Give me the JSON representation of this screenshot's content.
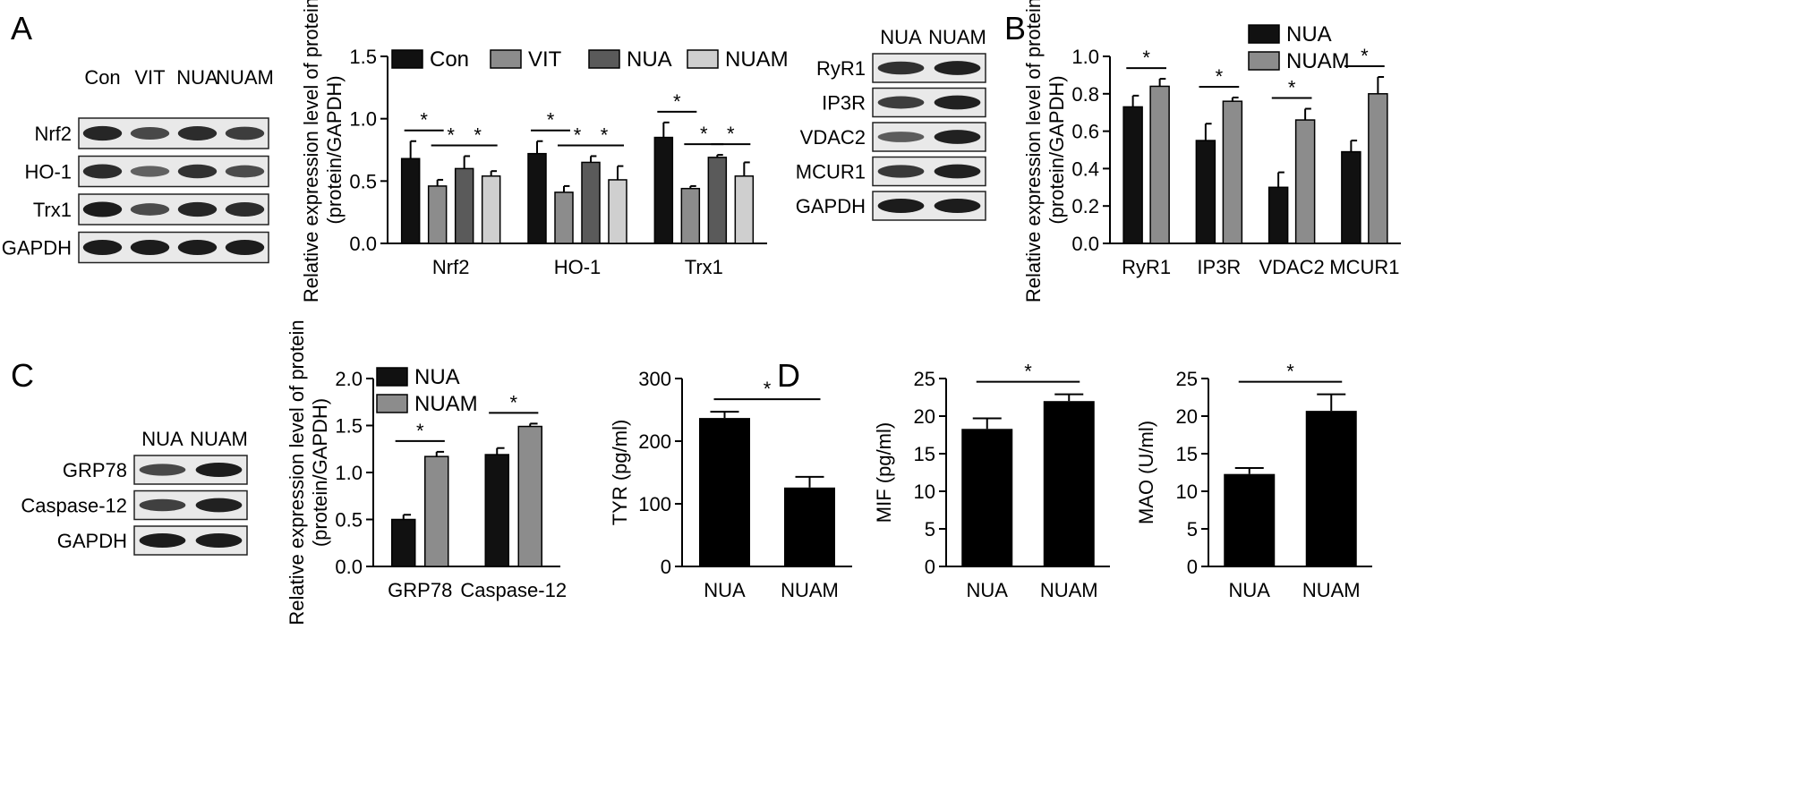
{
  "panels": {
    "A": {
      "letter": "A",
      "blot": {
        "lanes": [
          "Con",
          "VIT",
          "NUA",
          "NUAM"
        ],
        "rows": [
          "Nrf2",
          "HO-1",
          "Trx1",
          "GAPDH"
        ]
      },
      "chart_data": {
        "type": "bar",
        "ylabel": "Relative expression level of protein",
        "ylabel2": "(protein/GAPDH)",
        "ylim": [
          0,
          1.5
        ],
        "yticks": [
          "0.0",
          "0.5",
          "1.0",
          "1.5"
        ],
        "categories": [
          "Nrf2",
          "HO-1",
          "Trx1"
        ],
        "series": [
          {
            "name": "Con",
            "color": "#111111",
            "values": [
              0.68,
              0.72,
              0.85
            ],
            "errors": [
              0.14,
              0.1,
              0.12
            ]
          },
          {
            "name": "VIT",
            "color": "#8c8c8c",
            "values": [
              0.46,
              0.41,
              0.44
            ],
            "errors": [
              0.05,
              0.05,
              0.02
            ]
          },
          {
            "name": "NUA",
            "color": "#5a5a5a",
            "values": [
              0.6,
              0.65,
              0.69
            ],
            "errors": [
              0.1,
              0.05,
              0.02
            ]
          },
          {
            "name": "NUAM",
            "color": "#cfcfcf",
            "values": [
              0.54,
              0.51,
              0.54
            ],
            "errors": [
              0.04,
              0.11,
              0.11
            ]
          }
        ],
        "significance": "*",
        "legend_position": "top"
      }
    },
    "B": {
      "letter": "B",
      "blot": {
        "lanes": [
          "NUA",
          "NUAM"
        ],
        "rows": [
          "RyR1",
          "IP3R",
          "VDAC2",
          "MCUR1",
          "GAPDH"
        ]
      },
      "chart_data": {
        "type": "bar",
        "ylabel": "Relative expression level of protein",
        "ylabel2": "(protein/GAPDH)",
        "ylim": [
          0,
          1.0
        ],
        "yticks": [
          "0.0",
          "0.2",
          "0.4",
          "0.6",
          "0.8",
          "1.0"
        ],
        "categories": [
          "RyR1",
          "IP3R",
          "VDAC2",
          "MCUR1"
        ],
        "series": [
          {
            "name": "NUA",
            "color": "#111111",
            "values": [
              0.73,
              0.55,
              0.3,
              0.49
            ],
            "errors": [
              0.06,
              0.09,
              0.08,
              0.06
            ]
          },
          {
            "name": "NUAM",
            "color": "#8c8c8c",
            "values": [
              0.84,
              0.76,
              0.66,
              0.8
            ],
            "errors": [
              0.04,
              0.02,
              0.06,
              0.09
            ]
          }
        ],
        "significance": "*",
        "legend_position": "top-right"
      }
    },
    "C": {
      "letter": "C",
      "blot": {
        "lanes": [
          "NUA",
          "NUAM"
        ],
        "rows": [
          "GRP78",
          "Caspase-12",
          "GAPDH"
        ]
      },
      "chart_data": {
        "type": "bar",
        "ylabel": "Relative expression level of protein",
        "ylabel2": "(protein/GAPDH)",
        "ylim": [
          0,
          2.0
        ],
        "yticks": [
          "0.0",
          "0.5",
          "1.0",
          "1.5",
          "2.0"
        ],
        "categories": [
          "GRP78",
          "Caspase-12"
        ],
        "series": [
          {
            "name": "NUA",
            "color": "#111111",
            "values": [
              0.5,
              1.19
            ],
            "errors": [
              0.05,
              0.07
            ]
          },
          {
            "name": "NUAM",
            "color": "#8c8c8c",
            "values": [
              1.17,
              1.49
            ],
            "errors": [
              0.05,
              0.03
            ]
          }
        ],
        "significance": "*",
        "legend_position": "top-left"
      }
    },
    "D": {
      "letter": "D",
      "charts": [
        {
          "type": "bar",
          "ylabel": "TYR (pg/ml)",
          "ylim": [
            0,
            300
          ],
          "yticks": [
            "0",
            "100",
            "200",
            "300"
          ],
          "categories": [
            "NUA",
            "NUAM"
          ],
          "values": [
            237,
            126
          ],
          "errors": [
            10,
            17
          ],
          "color": "#000000",
          "significance": "*"
        },
        {
          "type": "bar",
          "ylabel": "MIF (pg/ml)",
          "ylim": [
            0,
            25
          ],
          "yticks": [
            "0",
            "5",
            "10",
            "15",
            "20",
            "25"
          ],
          "categories": [
            "NUA",
            "NUAM"
          ],
          "values": [
            18.3,
            22.0
          ],
          "errors": [
            1.4,
            0.9
          ],
          "color": "#000000",
          "significance": "*"
        },
        {
          "type": "bar",
          "ylabel": "MAO (U/ml)",
          "ylim": [
            0,
            25
          ],
          "yticks": [
            "0",
            "5",
            "10",
            "15",
            "20",
            "25"
          ],
          "categories": [
            "NUA",
            "NUAM"
          ],
          "values": [
            12.3,
            20.7
          ],
          "errors": [
            0.8,
            2.2
          ],
          "color": "#000000",
          "significance": "*"
        }
      ]
    }
  }
}
